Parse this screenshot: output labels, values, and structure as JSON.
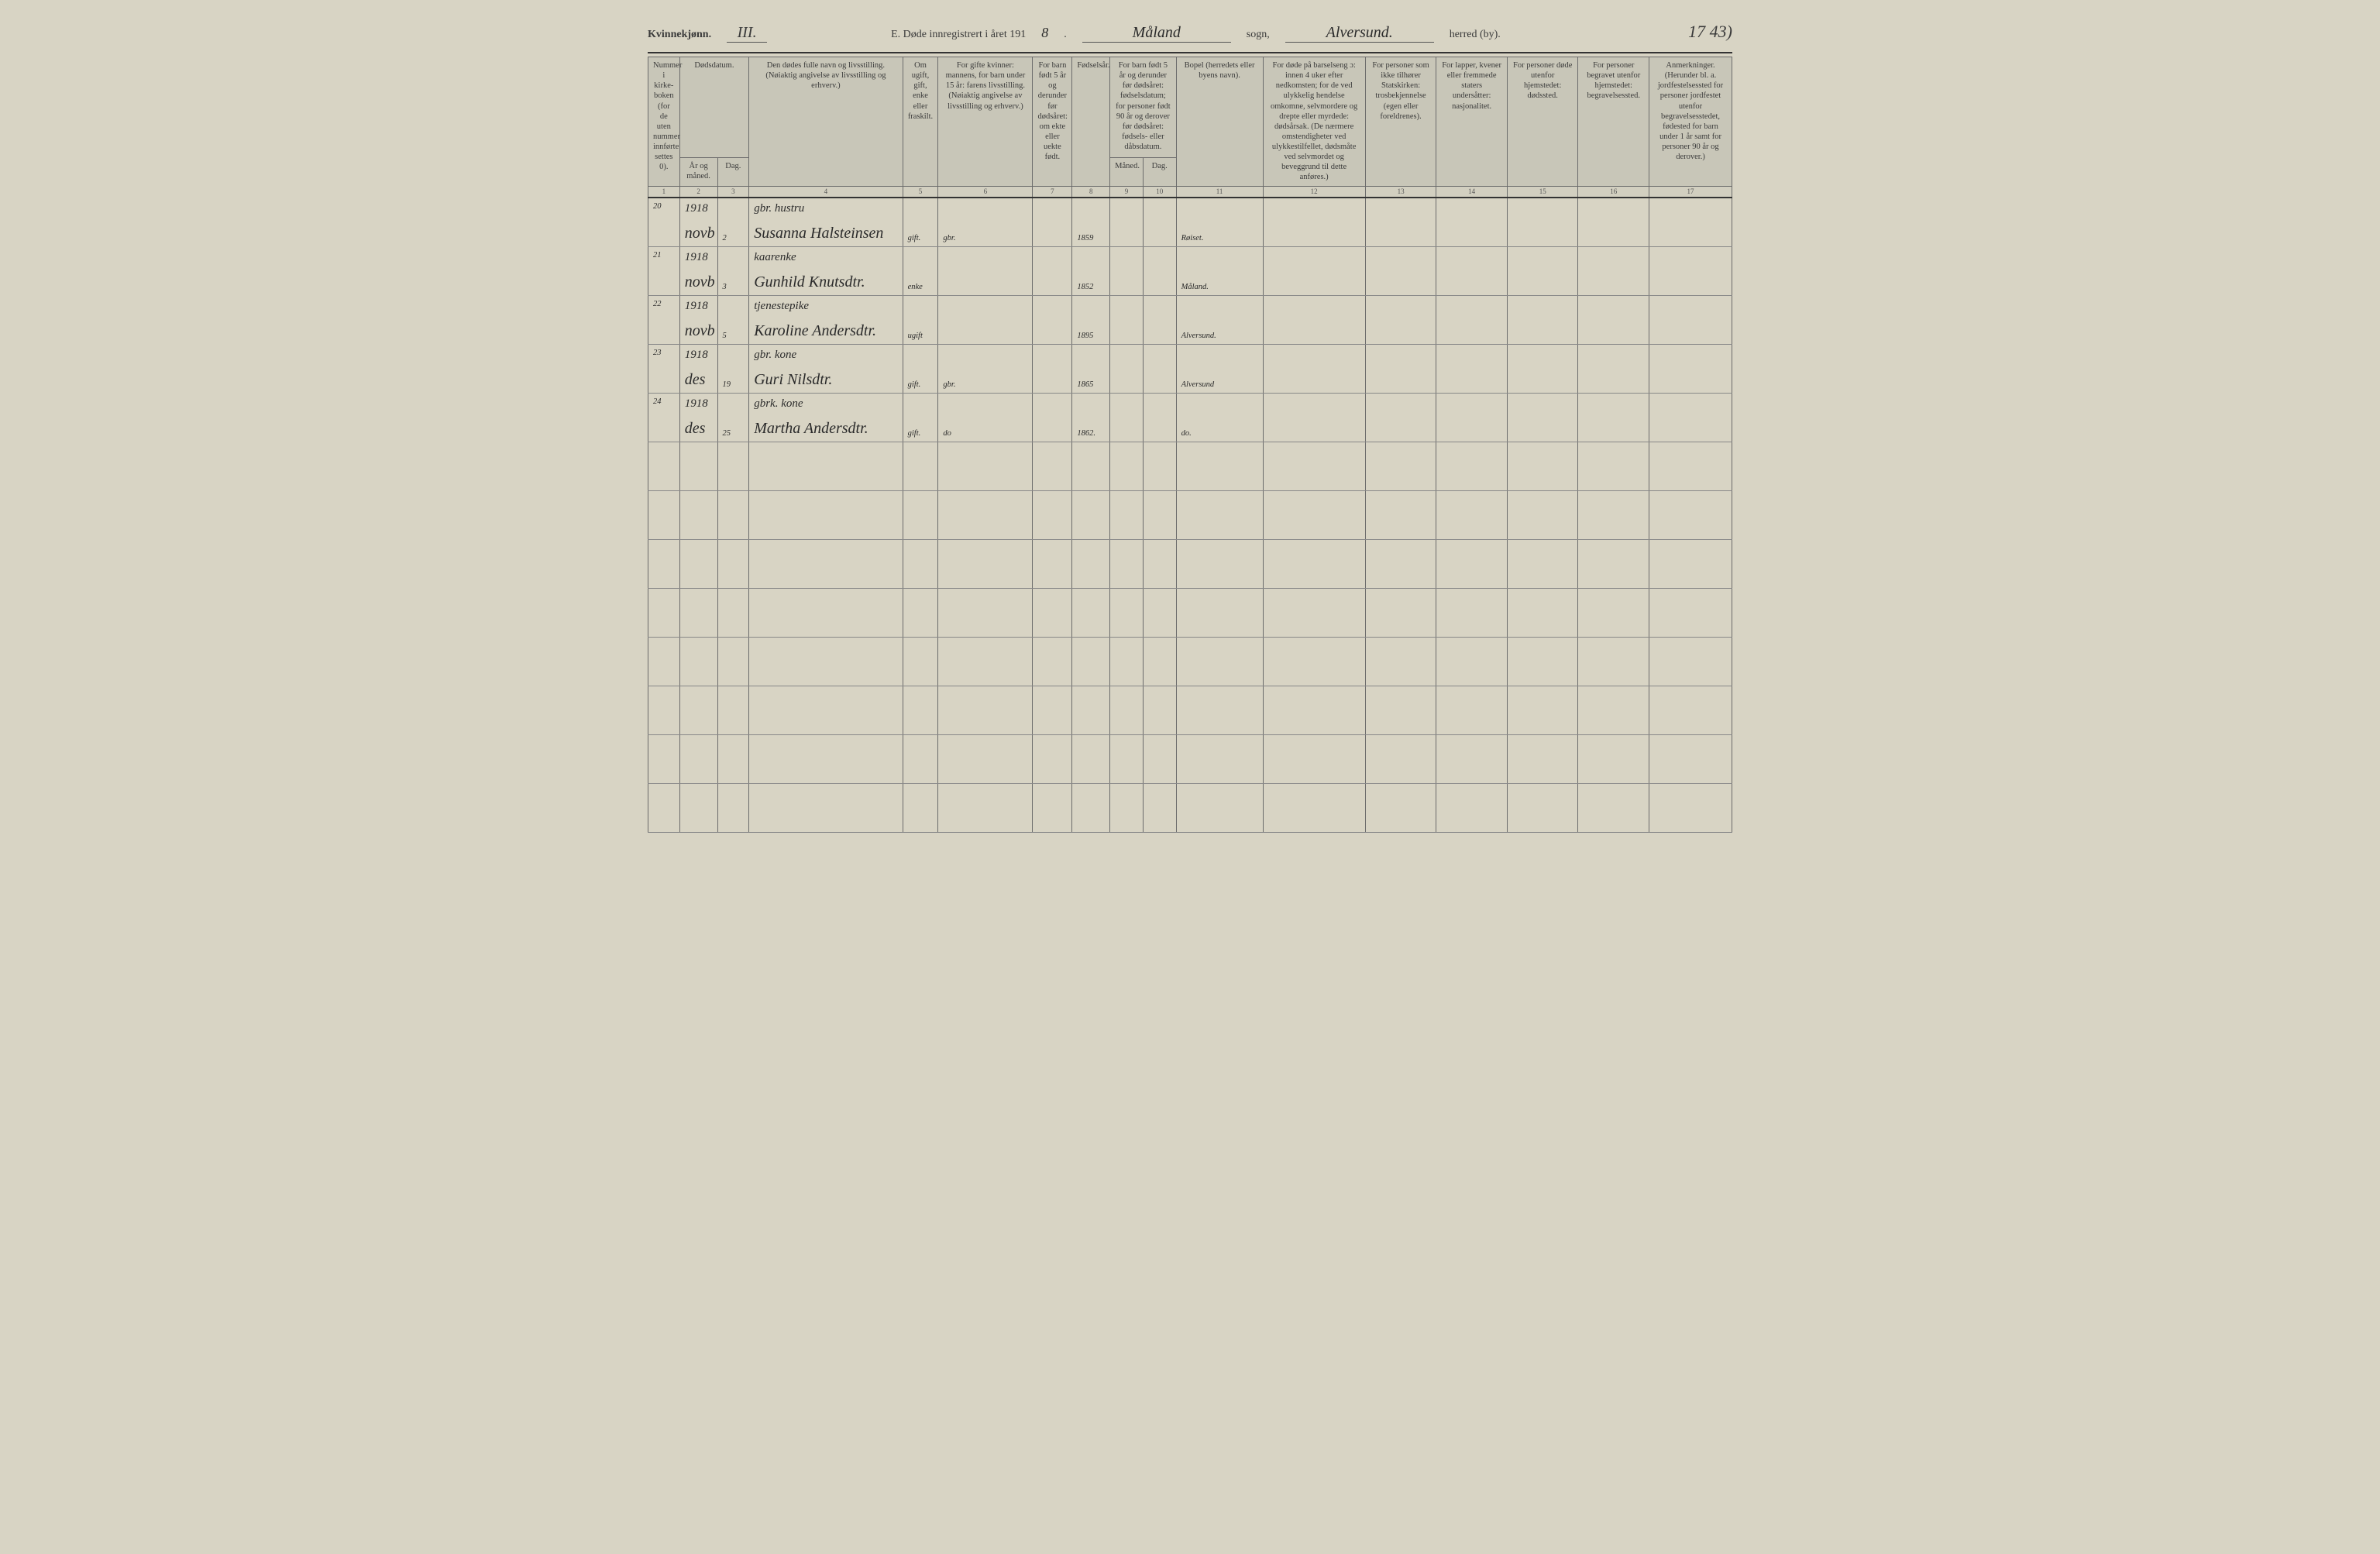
{
  "header": {
    "gender_label": "Kvinnekjønn.",
    "gender_roman": "III.",
    "title_prefix": "E. Døde innregistrert i året 191",
    "year_suffix": "8",
    "sogn_value": "Måland",
    "sogn_label": "sogn,",
    "herred_value": "Alversund.",
    "herred_label": "herred (by).",
    "page_number": "17 43)"
  },
  "columns": {
    "c1": "Nummer i kirke-boken (for de uten nummer innførte settes 0).",
    "c2": "Dødsdatum.",
    "c2a": "År og måned.",
    "c2b": "Dag.",
    "c3": "Den dødes fulle navn og livsstilling. (Nøiaktig angivelse av livsstilling og erhverv.)",
    "c4": "Om ugift, gift, enke eller fraskilt.",
    "c5": "For gifte kvinner: mannens, for barn under 15 år: farens livsstilling. (Nøiaktig angivelse av livsstilling og erhverv.)",
    "c6": "For barn født 5 år og derunder før dødsåret: om ekte eller uekte født.",
    "c7": "Fødselsår.",
    "c8": "For barn født 5 år og derunder før dødsåret: fødselsdatum; for personer født 90 år og derover før dødsåret: fødsels- eller dåbsdatum.",
    "c8a": "Måned.",
    "c8b": "Dag.",
    "c9": "Bopel (herredets eller byens navn).",
    "c10": "For døde på barselseng ɔ: innen 4 uker efter nedkomsten; for de ved ulykkelig hendelse omkomne, selvmordere og drepte eller myrdede: dødsårsak. (De nærmere omstendigheter ved ulykkestilfellet, dødsmåte ved selvmordet og beveggrund til dette anføres.)",
    "c11": "For personer som ikke tilhører Statskirken: trosbekjennelse (egen eller foreldrenes).",
    "c12": "For lapper, kvener eller fremmede staters undersåtter: nasjonalitet.",
    "c13": "For personer døde utenfor hjemstedet: dødssted.",
    "c14": "For personer begravet utenfor hjemstedet: begravelsessted.",
    "c15": "Anmerkninger. (Herunder bl. a. jordfestelsessted for personer jordfestet utenfor begravelsesstedet, fødested for barn under 1 år samt for personer 90 år og derover.)"
  },
  "colnums": [
    "1",
    "2",
    "3",
    "4",
    "5",
    "6",
    "7",
    "8",
    "9",
    "10",
    "11",
    "12",
    "13",
    "14",
    "15",
    "16",
    "17"
  ],
  "rows": [
    {
      "num": "20",
      "year_month_top": "1918",
      "year_month_bot": "novb",
      "day": "2",
      "name_top": "gbr. hustru",
      "name_bot": "Susanna Halsteinsen",
      "status": "gift.",
      "spouse": "gbr.",
      "birth_year": "1859",
      "bopel": "Røiset."
    },
    {
      "num": "21",
      "year_month_top": "1918",
      "year_month_bot": "novb",
      "day": "3",
      "name_top": "kaarenke",
      "name_bot": "Gunhild Knutsdtr.",
      "status": "enke",
      "spouse": "",
      "birth_year": "1852",
      "bopel": "Måland."
    },
    {
      "num": "22",
      "year_month_top": "1918",
      "year_month_bot": "novb",
      "day": "5",
      "name_top": "tjenestepike",
      "name_bot": "Karoline Andersdtr.",
      "status": "ugift",
      "spouse": "",
      "birth_year": "1895",
      "bopel": "Alversund."
    },
    {
      "num": "23",
      "year_month_top": "1918",
      "year_month_bot": "des",
      "day": "19",
      "name_top": "gbr. kone",
      "name_bot": "Guri Nilsdtr.",
      "status": "gift.",
      "spouse": "gbr.",
      "birth_year": "1865",
      "bopel": "Alversund"
    },
    {
      "num": "24",
      "year_month_top": "1918",
      "year_month_bot": "des",
      "day": "25",
      "name_top": "gbrk. kone",
      "name_bot": "Martha Andersdtr.",
      "status": "gift.",
      "spouse": "do",
      "birth_year": "1862.",
      "bopel": "do."
    }
  ],
  "empty_row_count": 8,
  "styling": {
    "bg_color": "#d8d4c4",
    "header_cell_bg": "#c8c6b8",
    "border_color": "#6b6b6b",
    "hand_color": "#2a2a2a",
    "text_color": "#3a3a3a",
    "hand_font": "Brush Script MT",
    "body_font": "Georgia"
  }
}
